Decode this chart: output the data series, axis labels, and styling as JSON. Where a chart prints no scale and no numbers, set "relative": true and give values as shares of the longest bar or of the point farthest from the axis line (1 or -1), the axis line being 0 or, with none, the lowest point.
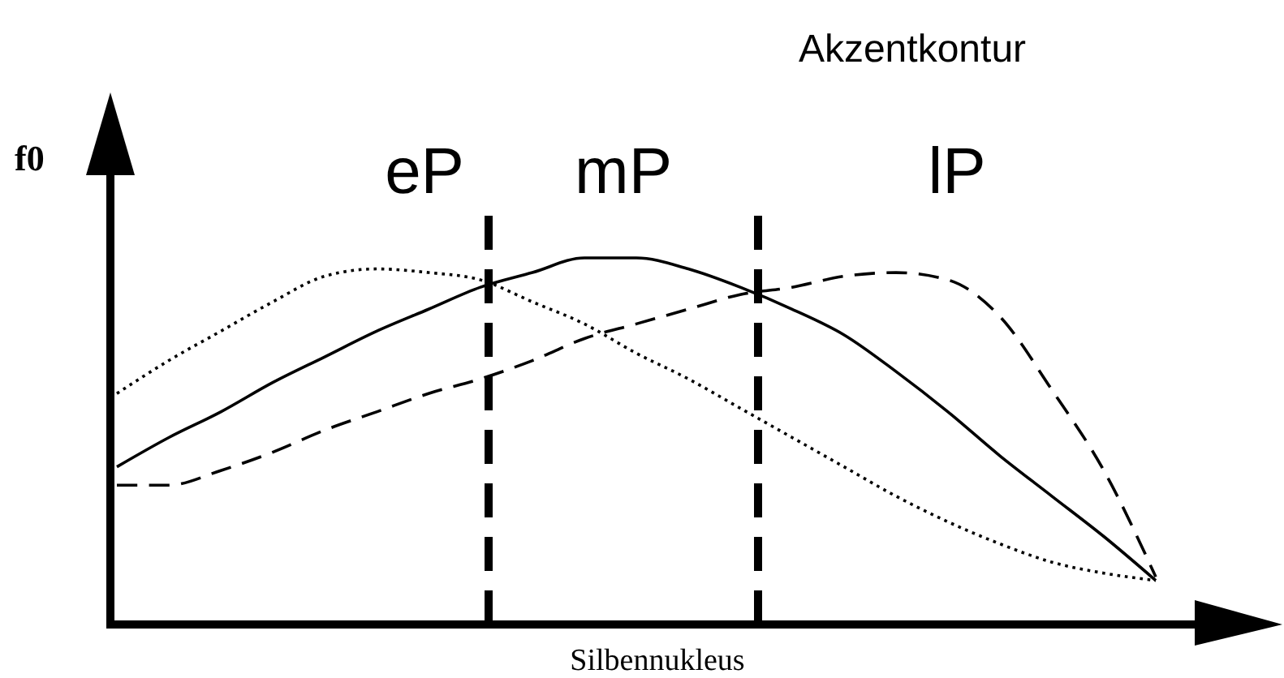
{
  "chart_data": {
    "type": "line",
    "title": "Akzentkontur",
    "xlabel": "Silbennukleus",
    "ylabel": "f0",
    "relative": true,
    "categories": [
      null,
      null,
      null,
      null,
      null,
      null,
      null,
      null,
      null,
      null,
      null,
      null,
      null,
      null,
      null,
      null,
      null,
      null,
      null,
      null,
      null
    ],
    "series": [
      {
        "color": "#000000",
        "line_style": "dotted",
        "values": [
          0.63,
          0.72,
          0.8,
          0.88,
          0.95,
          0.97,
          0.96,
          0.94,
          0.88,
          0.82,
          0.74,
          0.67,
          0.59,
          0.51,
          0.43,
          0.35,
          0.28,
          0.22,
          0.17,
          0.14,
          0.12
        ]
      },
      {
        "color": "#000000",
        "line_style": "solid",
        "values": [
          0.43,
          0.51,
          0.58,
          0.66,
          0.73,
          0.8,
          0.86,
          0.92,
          0.96,
          1.0,
          1.0,
          0.97,
          0.92,
          0.86,
          0.79,
          0.69,
          0.58,
          0.46,
          0.35,
          0.24,
          0.12
        ]
      },
      {
        "color": "#000000",
        "line_style": "dashed",
        "values": [
          0.38,
          0.38,
          0.42,
          0.47,
          0.53,
          0.58,
          0.63,
          0.67,
          0.72,
          0.78,
          0.82,
          0.86,
          0.9,
          0.92,
          0.95,
          0.96,
          0.94,
          0.84,
          0.64,
          0.42,
          0.13
        ]
      }
    ],
    "annotations": [
      "eP",
      "mP",
      "lP"
    ]
  }
}
